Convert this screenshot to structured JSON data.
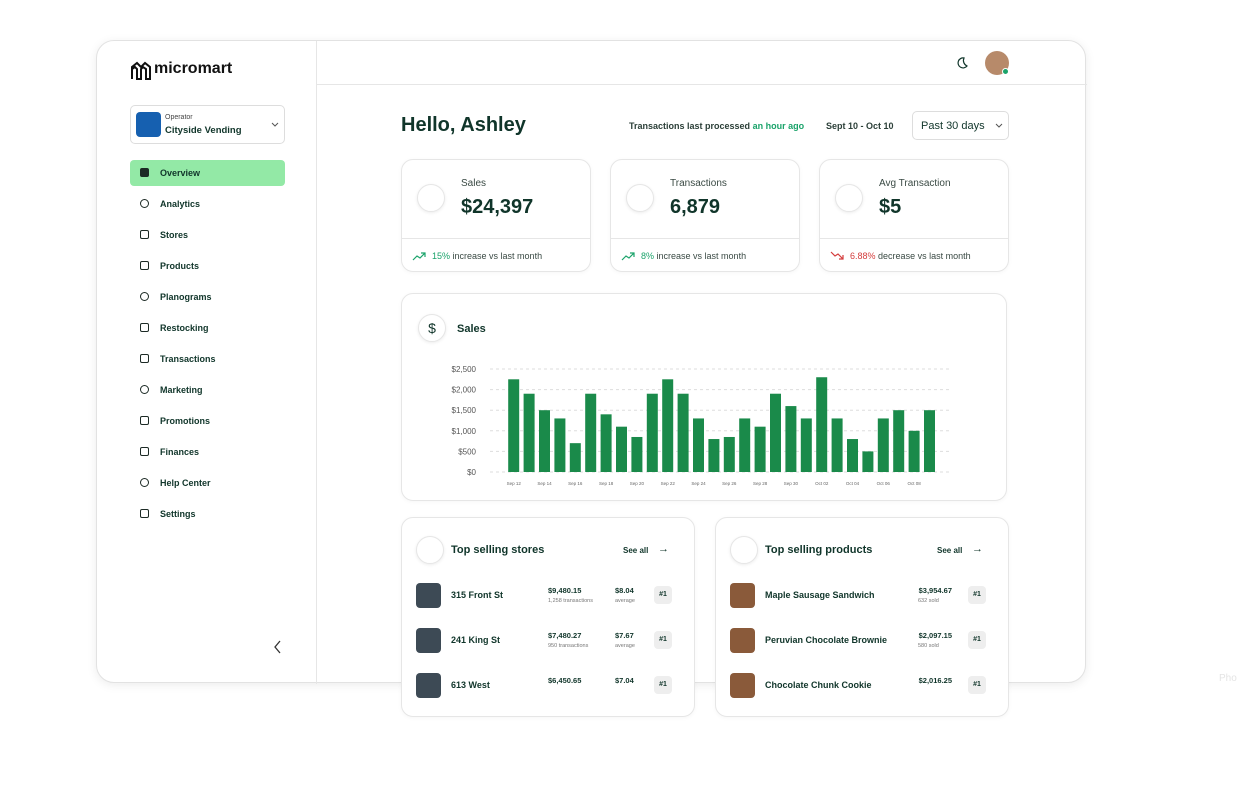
{
  "brand": "micromart",
  "operator": {
    "label": "Operator",
    "name": "Cityside Vending"
  },
  "nav": [
    "Overview",
    "Analytics",
    "Stores",
    "Products",
    "Planograms",
    "Restocking",
    "Transactions",
    "Marketing",
    "Promotions",
    "Finances",
    "Help Center",
    "Settings"
  ],
  "greeting": "Hello, Ashley",
  "status": {
    "text": "Transactions last processed",
    "time": "an hour ago",
    "date_range": "Sept 10 - Oct 10",
    "period": "Past 30 days"
  },
  "kpis": [
    {
      "label": "Sales",
      "value": "$24,397",
      "change": "15%",
      "note": "increase vs last month",
      "trend": "up"
    },
    {
      "label": "Transactions",
      "value": "6,879",
      "change": "8%",
      "note": "increase vs last month",
      "trend": "up"
    },
    {
      "label": "Avg Transaction",
      "value": "$5",
      "change": "6.88%",
      "note": "decrease vs last month",
      "trend": "down"
    }
  ],
  "chart_data": {
    "type": "bar",
    "title": "Sales",
    "color": "#1a8a4a",
    "grid": true,
    "categories": [
      "Sep 12",
      null,
      "Sep 14",
      null,
      "Sep 16",
      null,
      "Sep 18",
      null,
      "Sep 20",
      null,
      "Sep 22",
      null,
      "Sep 24",
      null,
      "Sep 26",
      null,
      "Sep 28",
      null,
      "Sep 30",
      null,
      "Oct 02",
      null,
      "Oct 04",
      null,
      "Oct 06",
      null,
      "Oct 08",
      null
    ],
    "values": [
      2250,
      1900,
      1500,
      1300,
      700,
      1900,
      1400,
      1100,
      850,
      1900,
      2250,
      1900,
      1300,
      800,
      850,
      1300,
      1100,
      1900,
      1600,
      1300,
      2300,
      1300,
      800,
      500,
      1300,
      1500,
      1000,
      1500
    ],
    "ylim": [
      0,
      2500
    ],
    "yticks": [
      {
        "value": 0,
        "label": "$0"
      },
      {
        "value": 500,
        "label": "$500"
      },
      {
        "value": 1000,
        "label": "$1,000"
      },
      {
        "value": 1500,
        "label": "$1,500"
      },
      {
        "value": 2000,
        "label": "$2,000"
      },
      {
        "value": 2500,
        "label": "$2,500"
      }
    ]
  },
  "top_stores": {
    "title": "Top selling stores",
    "see_all": "See all",
    "rows": [
      {
        "name": "315 Front St",
        "amount": "$9,480.15",
        "sub": "1,258 transactions",
        "avg": "$8.04",
        "avg_note": "average",
        "rank": "#1"
      },
      {
        "name": "241 King St",
        "amount": "$7,480.27",
        "sub": "950 transactions",
        "avg": "$7.67",
        "avg_note": "average",
        "rank": "#1"
      },
      {
        "name": "613 West",
        "amount": "$6,450.65",
        "avg": "$7.04",
        "rank": "#1"
      }
    ]
  },
  "top_products": {
    "title": "Top selling products",
    "see_all": "See all",
    "rows": [
      {
        "name": "Maple Sausage Sandwich",
        "amount": "$3,954.67",
        "sub": "632 sold",
        "rank": "#1"
      },
      {
        "name": "Peruvian Chocolate Brownie",
        "amount": "$2,097.15",
        "sub": "580 sold",
        "rank": "#1"
      },
      {
        "name": "Chocolate Chunk Cookie",
        "amount": "$2,016.25",
        "rank": "#1"
      }
    ]
  }
}
